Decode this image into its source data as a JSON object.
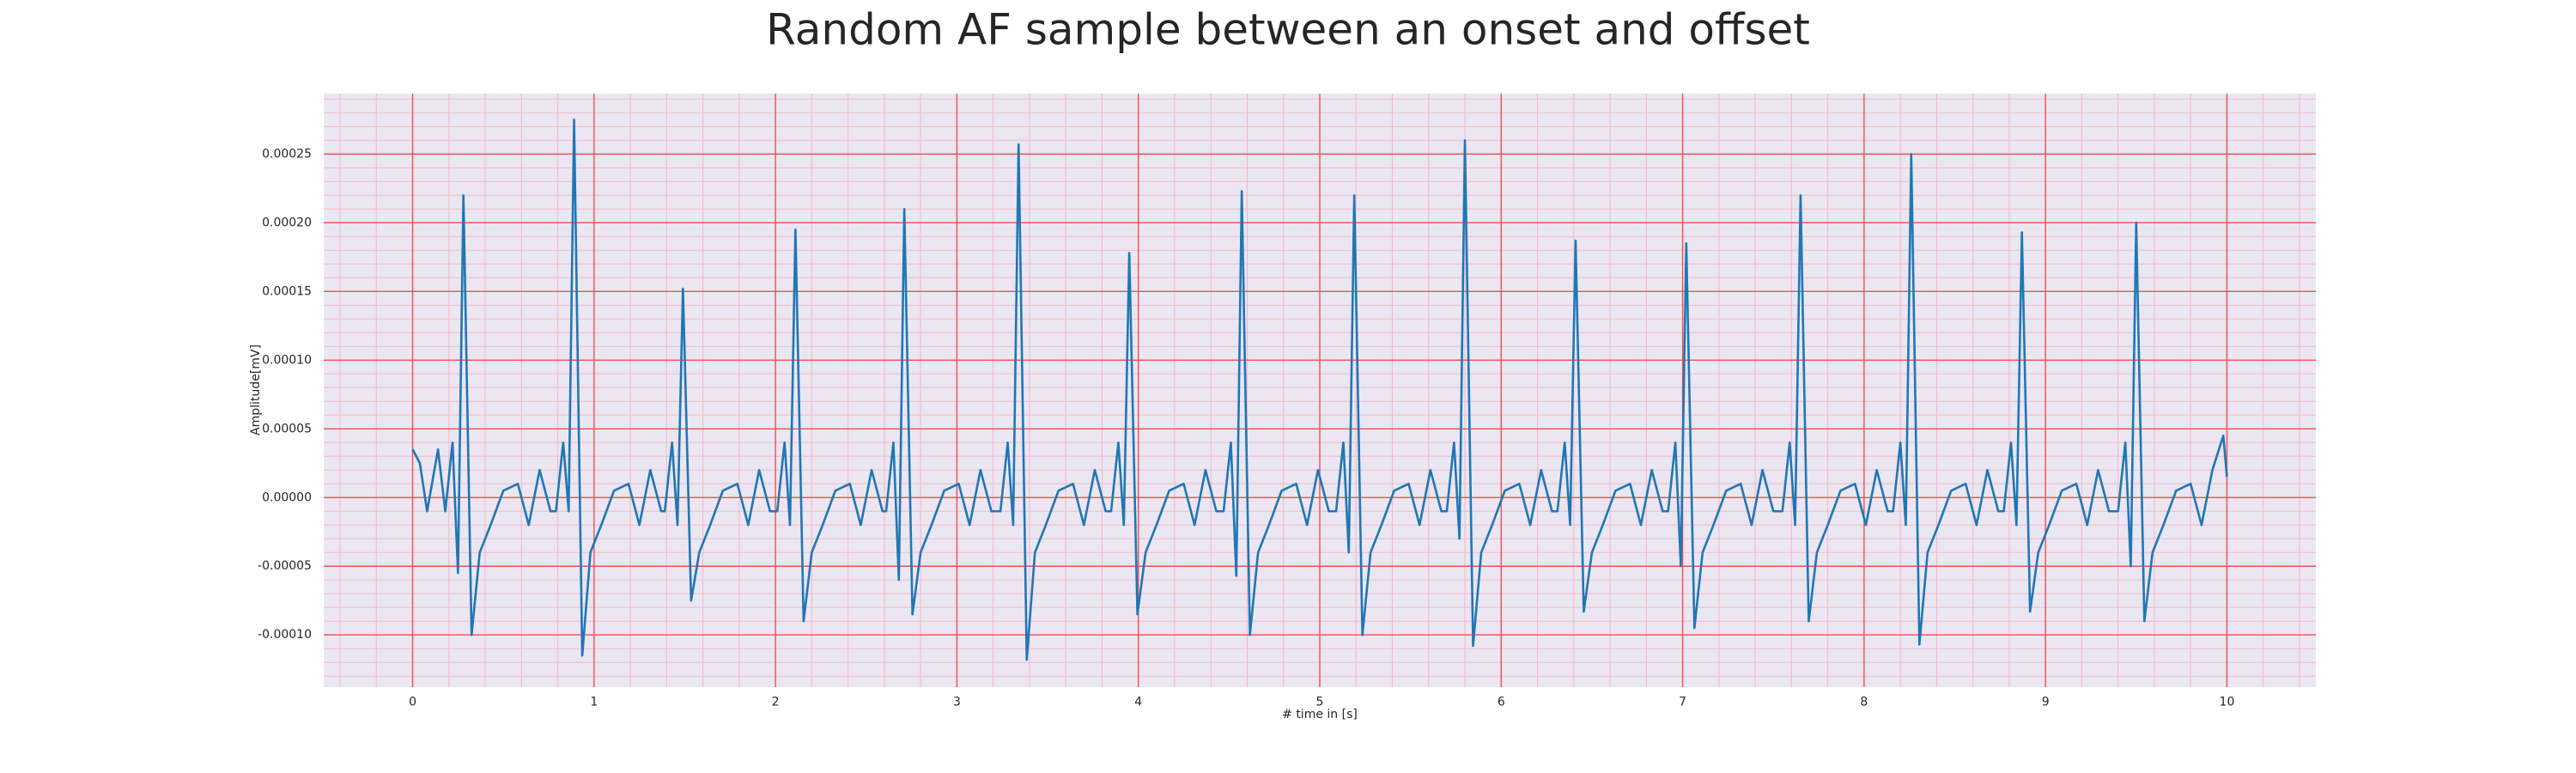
{
  "chart_data": {
    "type": "line",
    "title": "Random AF sample between an onset and offset",
    "xlabel": "# time in [s]",
    "ylabel": "Amplitude[mV]",
    "color": "#1f77b4",
    "grid": true,
    "minor_grid": true,
    "xlim": [
      -0.49,
      10.49
    ],
    "ylim": [
      -0.000138,
      0.000294
    ],
    "xticks": [
      0,
      1,
      2,
      3,
      4,
      5,
      6,
      7,
      8,
      9,
      10
    ],
    "yticks": [
      {
        "value": -0.0001,
        "label": "-0.00010"
      },
      {
        "value": -5e-05,
        "label": "-0.00005"
      },
      {
        "value": 0,
        "label": "0.00000"
      },
      {
        "value": 5e-05,
        "label": "0.00005"
      },
      {
        "value": 0.0001,
        "label": "0.00010"
      },
      {
        "value": 0.00015,
        "label": "0.00015"
      },
      {
        "value": 0.0002,
        "label": "0.00020"
      },
      {
        "value": 0.00025,
        "label": "0.00025"
      }
    ],
    "x": [
      0,
      0.04,
      0.08,
      0.14,
      0.18,
      0.22,
      0.25,
      0.28,
      0.325,
      0.37,
      0.43,
      0.5,
      0.58,
      0.64,
      0.7,
      0.76,
      0.79,
      0.83,
      0.86,
      0.89,
      0.935,
      0.98,
      1.04,
      1.11,
      1.19,
      1.25,
      1.31,
      1.37,
      1.39,
      1.43,
      1.46,
      1.49,
      1.535,
      1.58,
      1.64,
      1.71,
      1.79,
      1.85,
      1.91,
      1.97,
      2.01,
      2.05,
      2.08,
      2.11,
      2.155,
      2.2,
      2.26,
      2.33,
      2.41,
      2.47,
      2.53,
      2.59,
      2.61,
      2.65,
      2.68,
      2.71,
      2.755,
      2.8,
      2.86,
      2.93,
      3.01,
      3.07,
      3.13,
      3.19,
      3.24,
      3.28,
      3.31,
      3.34,
      3.385,
      3.43,
      3.49,
      3.56,
      3.64,
      3.7,
      3.76,
      3.82,
      3.85,
      3.89,
      3.92,
      3.95,
      3.995,
      4.04,
      4.1,
      4.17,
      4.25,
      4.31,
      4.37,
      4.43,
      4.47,
      4.51,
      4.54,
      4.57,
      4.615,
      4.66,
      4.72,
      4.79,
      4.87,
      4.93,
      4.99,
      5.05,
      5.09,
      5.13,
      5.16,
      5.19,
      5.235,
      5.28,
      5.34,
      5.41,
      5.49,
      5.55,
      5.61,
      5.67,
      5.7,
      5.74,
      5.77,
      5.8,
      5.845,
      5.89,
      5.95,
      6.02,
      6.1,
      6.16,
      6.22,
      6.28,
      6.31,
      6.35,
      6.38,
      6.41,
      6.455,
      6.5,
      6.56,
      6.63,
      6.71,
      6.77,
      6.83,
      6.89,
      6.92,
      6.96,
      6.99,
      7.02,
      7.065,
      7.11,
      7.17,
      7.24,
      7.32,
      7.38,
      7.44,
      7.5,
      7.55,
      7.59,
      7.62,
      7.65,
      7.695,
      7.74,
      7.8,
      7.87,
      7.95,
      8.01,
      8.07,
      8.13,
      8.16,
      8.2,
      8.23,
      8.26,
      8.305,
      8.35,
      8.41,
      8.48,
      8.56,
      8.62,
      8.68,
      8.74,
      8.77,
      8.81,
      8.84,
      8.87,
      8.915,
      8.96,
      9.02,
      9.09,
      9.17,
      9.23,
      9.29,
      9.35,
      9.4,
      9.44,
      9.47,
      9.5,
      9.545,
      9.59,
      9.65,
      9.72,
      9.8,
      9.86,
      9.92,
      9.98,
      10
    ],
    "values": [
      3.5e-05,
      2.5e-05,
      -1e-05,
      3.5e-05,
      -1e-05,
      4e-05,
      -5.5e-05,
      0.00022,
      -0.0001,
      -4e-05,
      -2e-05,
      5e-06,
      1e-05,
      -2e-05,
      2e-05,
      -1e-05,
      -1e-05,
      4e-05,
      -1e-05,
      0.000275,
      -0.000115,
      -4e-05,
      -2e-05,
      5e-06,
      1e-05,
      -2e-05,
      2e-05,
      -1e-05,
      -1e-05,
      4e-05,
      -2e-05,
      0.000152,
      -7.5e-05,
      -4e-05,
      -2e-05,
      5e-06,
      1e-05,
      -2e-05,
      2e-05,
      -1e-05,
      -1e-05,
      4e-05,
      -2e-05,
      0.000195,
      -9e-05,
      -4e-05,
      -2e-05,
      5e-06,
      1e-05,
      -2e-05,
      2e-05,
      -1e-05,
      -1e-05,
      4e-05,
      -6e-05,
      0.00021,
      -8.5e-05,
      -4e-05,
      -2e-05,
      5e-06,
      1e-05,
      -2e-05,
      2e-05,
      -1e-05,
      -1e-05,
      4e-05,
      -2e-05,
      0.000257,
      -0.000118,
      -4e-05,
      -2e-05,
      5e-06,
      1e-05,
      -2e-05,
      2e-05,
      -1e-05,
      -1e-05,
      4e-05,
      -2e-05,
      0.000178,
      -8.5e-05,
      -4e-05,
      -2e-05,
      5e-06,
      1e-05,
      -2e-05,
      2e-05,
      -1e-05,
      -1e-05,
      4e-05,
      -5.7e-05,
      0.000223,
      -0.0001,
      -4e-05,
      -2e-05,
      5e-06,
      1e-05,
      -2e-05,
      2e-05,
      -1e-05,
      -1e-05,
      4e-05,
      -4e-05,
      0.00022,
      -0.0001,
      -4e-05,
      -2e-05,
      5e-06,
      1e-05,
      -2e-05,
      2e-05,
      -1e-05,
      -1e-05,
      4e-05,
      -3e-05,
      0.00026,
      -0.000108,
      -4e-05,
      -2e-05,
      5e-06,
      1e-05,
      -2e-05,
      2e-05,
      -1e-05,
      -1e-05,
      4e-05,
      -2e-05,
      0.000187,
      -8.3e-05,
      -4e-05,
      -2e-05,
      5e-06,
      1e-05,
      -2e-05,
      2e-05,
      -1e-05,
      -1e-05,
      4e-05,
      -5e-05,
      0.000185,
      -9.5e-05,
      -4e-05,
      -2e-05,
      5e-06,
      1e-05,
      -2e-05,
      2e-05,
      -1e-05,
      -1e-05,
      4e-05,
      -2e-05,
      0.00022,
      -9e-05,
      -4e-05,
      -2e-05,
      5e-06,
      1e-05,
      -2e-05,
      2e-05,
      -1e-05,
      -1e-05,
      4e-05,
      -2e-05,
      0.00025,
      -0.000107,
      -4e-05,
      -2e-05,
      5e-06,
      1e-05,
      -2e-05,
      2e-05,
      -1e-05,
      -1e-05,
      4e-05,
      -2e-05,
      0.000193,
      -8.3e-05,
      -4e-05,
      -2e-05,
      5e-06,
      1e-05,
      -2e-05,
      2e-05,
      -1e-05,
      -1e-05,
      4e-05,
      -5e-05,
      0.0002,
      -9e-05,
      -4e-05,
      -2e-05,
      5e-06,
      1e-05,
      -2e-05,
      2e-05,
      4.5e-05,
      1.5e-05
    ]
  }
}
